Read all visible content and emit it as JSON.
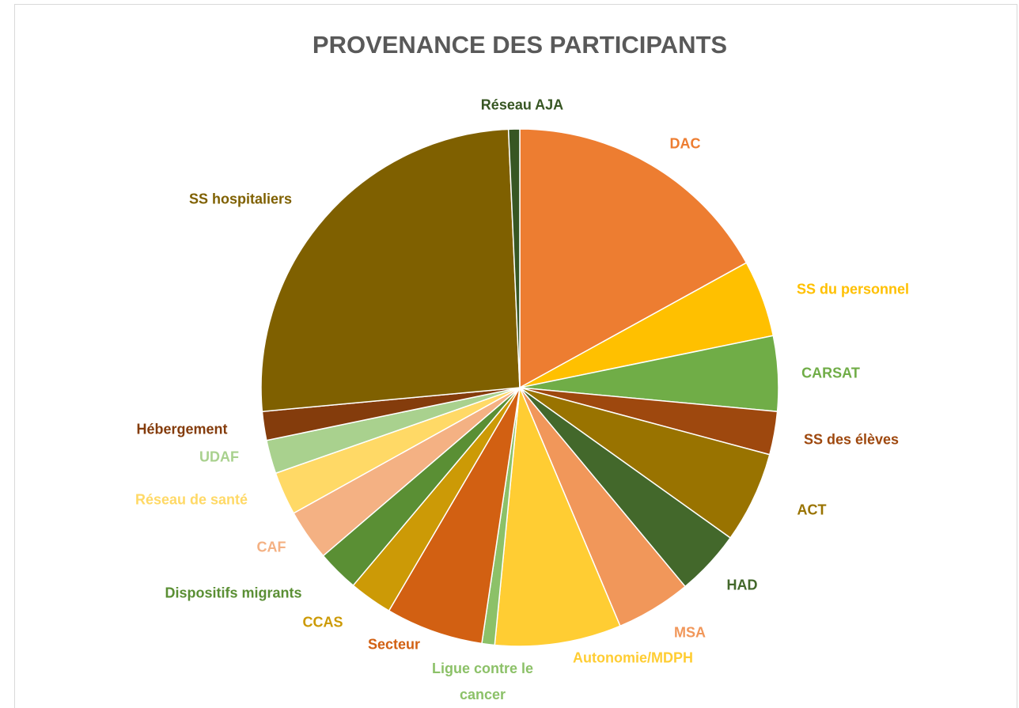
{
  "chart_data": {
    "type": "pie",
    "title": "PROVENANCE DES PARTICIPANTS",
    "categories": [
      "DAC",
      "SS du personnel",
      "CARSAT",
      "SS des élèves",
      "ACT",
      "HAD",
      "MSA",
      "Autonomie/MDPH",
      "Ligue contre le cancer",
      "Secteur",
      "CCAS",
      "Dispositifs migrants",
      "CAF",
      "Réseau de santé",
      "UDAF",
      "Hébergement",
      "SS hospitaliers",
      "Réseau AJA"
    ],
    "values": [
      17.0,
      4.8,
      4.7,
      2.7,
      5.7,
      4.1,
      4.7,
      7.9,
      0.8,
      6.1,
      2.7,
      2.6,
      3.2,
      2.7,
      2.1,
      1.8,
      25.8,
      0.7
    ],
    "colors": [
      "#ED7D31",
      "#FFC000",
      "#70AD47",
      "#9E480E",
      "#997300",
      "#43682B",
      "#F1975A",
      "#FFCD33",
      "#8CC168",
      "#D26012",
      "#CC9A06",
      "#5A8F34",
      "#F4B183",
      "#FFD966",
      "#A9D18E",
      "#843C0C",
      "#7F6000",
      "#375623"
    ]
  }
}
